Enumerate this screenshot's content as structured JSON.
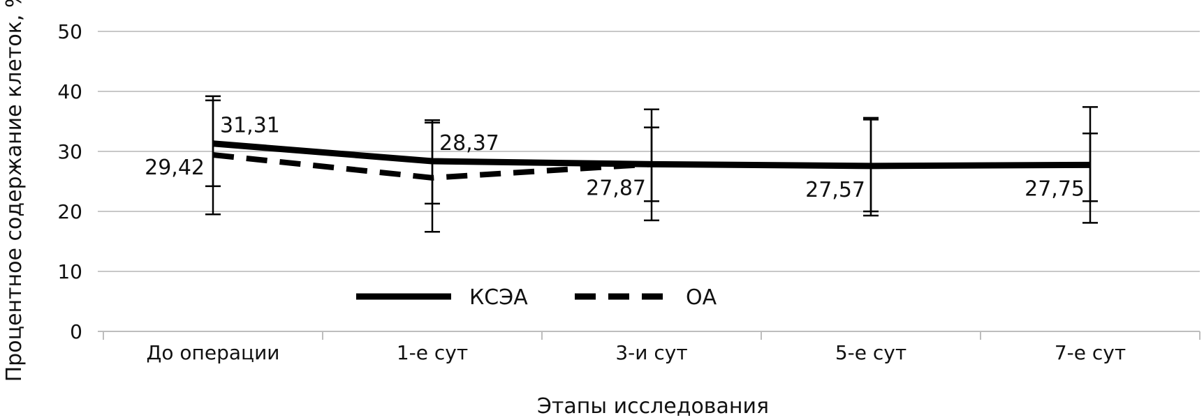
{
  "chart_data": {
    "type": "line",
    "title": "",
    "xlabel": "Этапы исследования",
    "ylabel": "Процентное содержание клеток, %",
    "categories": [
      "До операции",
      "1-е сут",
      "3-и сут",
      "5-е сут",
      "7-е сут"
    ],
    "ylim": [
      0,
      50
    ],
    "yticks": [
      0,
      10,
      20,
      30,
      40,
      50
    ],
    "grid": true,
    "legend_position": "bottom-center",
    "series": [
      {
        "name": "КСЭА",
        "style": "solid",
        "color": "#000000",
        "values": [
          31.31,
          28.37,
          27.87,
          27.57,
          27.75
        ],
        "labels": [
          "31,31",
          "28,37",
          "",
          "",
          ""
        ],
        "error_low": [
          19.5,
          21.3,
          21.7,
          20.0,
          21.7
        ],
        "error_high": [
          38.5,
          35.2,
          34.0,
          35.3,
          33.0
        ]
      },
      {
        "name": "ОА",
        "style": "dashed",
        "color": "#000000",
        "values": [
          29.42,
          25.6,
          27.87,
          27.57,
          27.75
        ],
        "labels": [
          "29,42",
          "",
          "27,87",
          "27,57",
          "27,75"
        ],
        "error_low": [
          24.2,
          16.6,
          18.5,
          19.3,
          18.1
        ],
        "error_high": [
          39.2,
          34.8,
          37.0,
          35.6,
          37.4
        ]
      }
    ]
  }
}
